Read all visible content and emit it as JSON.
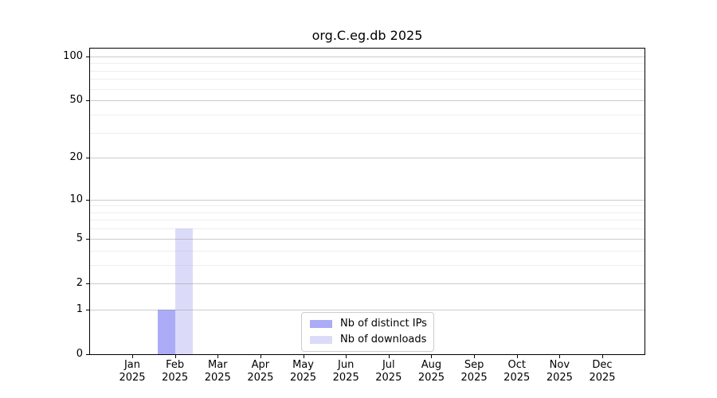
{
  "title": "org.C.eg.db 2025",
  "legend": {
    "items": [
      {
        "label": "Nb of distinct IPs",
        "color": "#ababf8"
      },
      {
        "label": "Nb of downloads",
        "color": "#dbdbf9"
      }
    ]
  },
  "colors": {
    "background": "#ffffff",
    "spine": "#000000",
    "major_grid": "#c9c9c9",
    "minor_grid": "#efefef",
    "legend_border": "#cccccc",
    "text": "#000000"
  },
  "chart_data": {
    "type": "bar",
    "title": "org.C.eg.db 2025",
    "categories": [
      "Jan",
      "Feb",
      "Mar",
      "Apr",
      "May",
      "Jun",
      "Jul",
      "Aug",
      "Sep",
      "Oct",
      "Nov",
      "Dec"
    ],
    "x_tick_second_line": "2025",
    "series": [
      {
        "name": "Nb of distinct IPs",
        "color": "#ababf8",
        "values": [
          0,
          1,
          0,
          0,
          0,
          0,
          0,
          0,
          0,
          0,
          0,
          0
        ]
      },
      {
        "name": "Nb of downloads",
        "color": "#dbdbf9",
        "values": [
          0,
          6,
          0,
          0,
          0,
          0,
          0,
          0,
          0,
          0,
          0,
          0
        ]
      }
    ],
    "xlabel": "",
    "ylabel": "",
    "y_scale": "log10(1+v)",
    "y_major_ticks": [
      0,
      1,
      2,
      5,
      10,
      20,
      50,
      100
    ],
    "y_minor_gridlines": [
      3,
      4,
      6,
      7,
      8,
      9,
      30,
      40,
      60,
      70,
      80,
      90
    ],
    "ylim": [
      0,
      113
    ],
    "grid": true,
    "legend_position": "lower center"
  }
}
